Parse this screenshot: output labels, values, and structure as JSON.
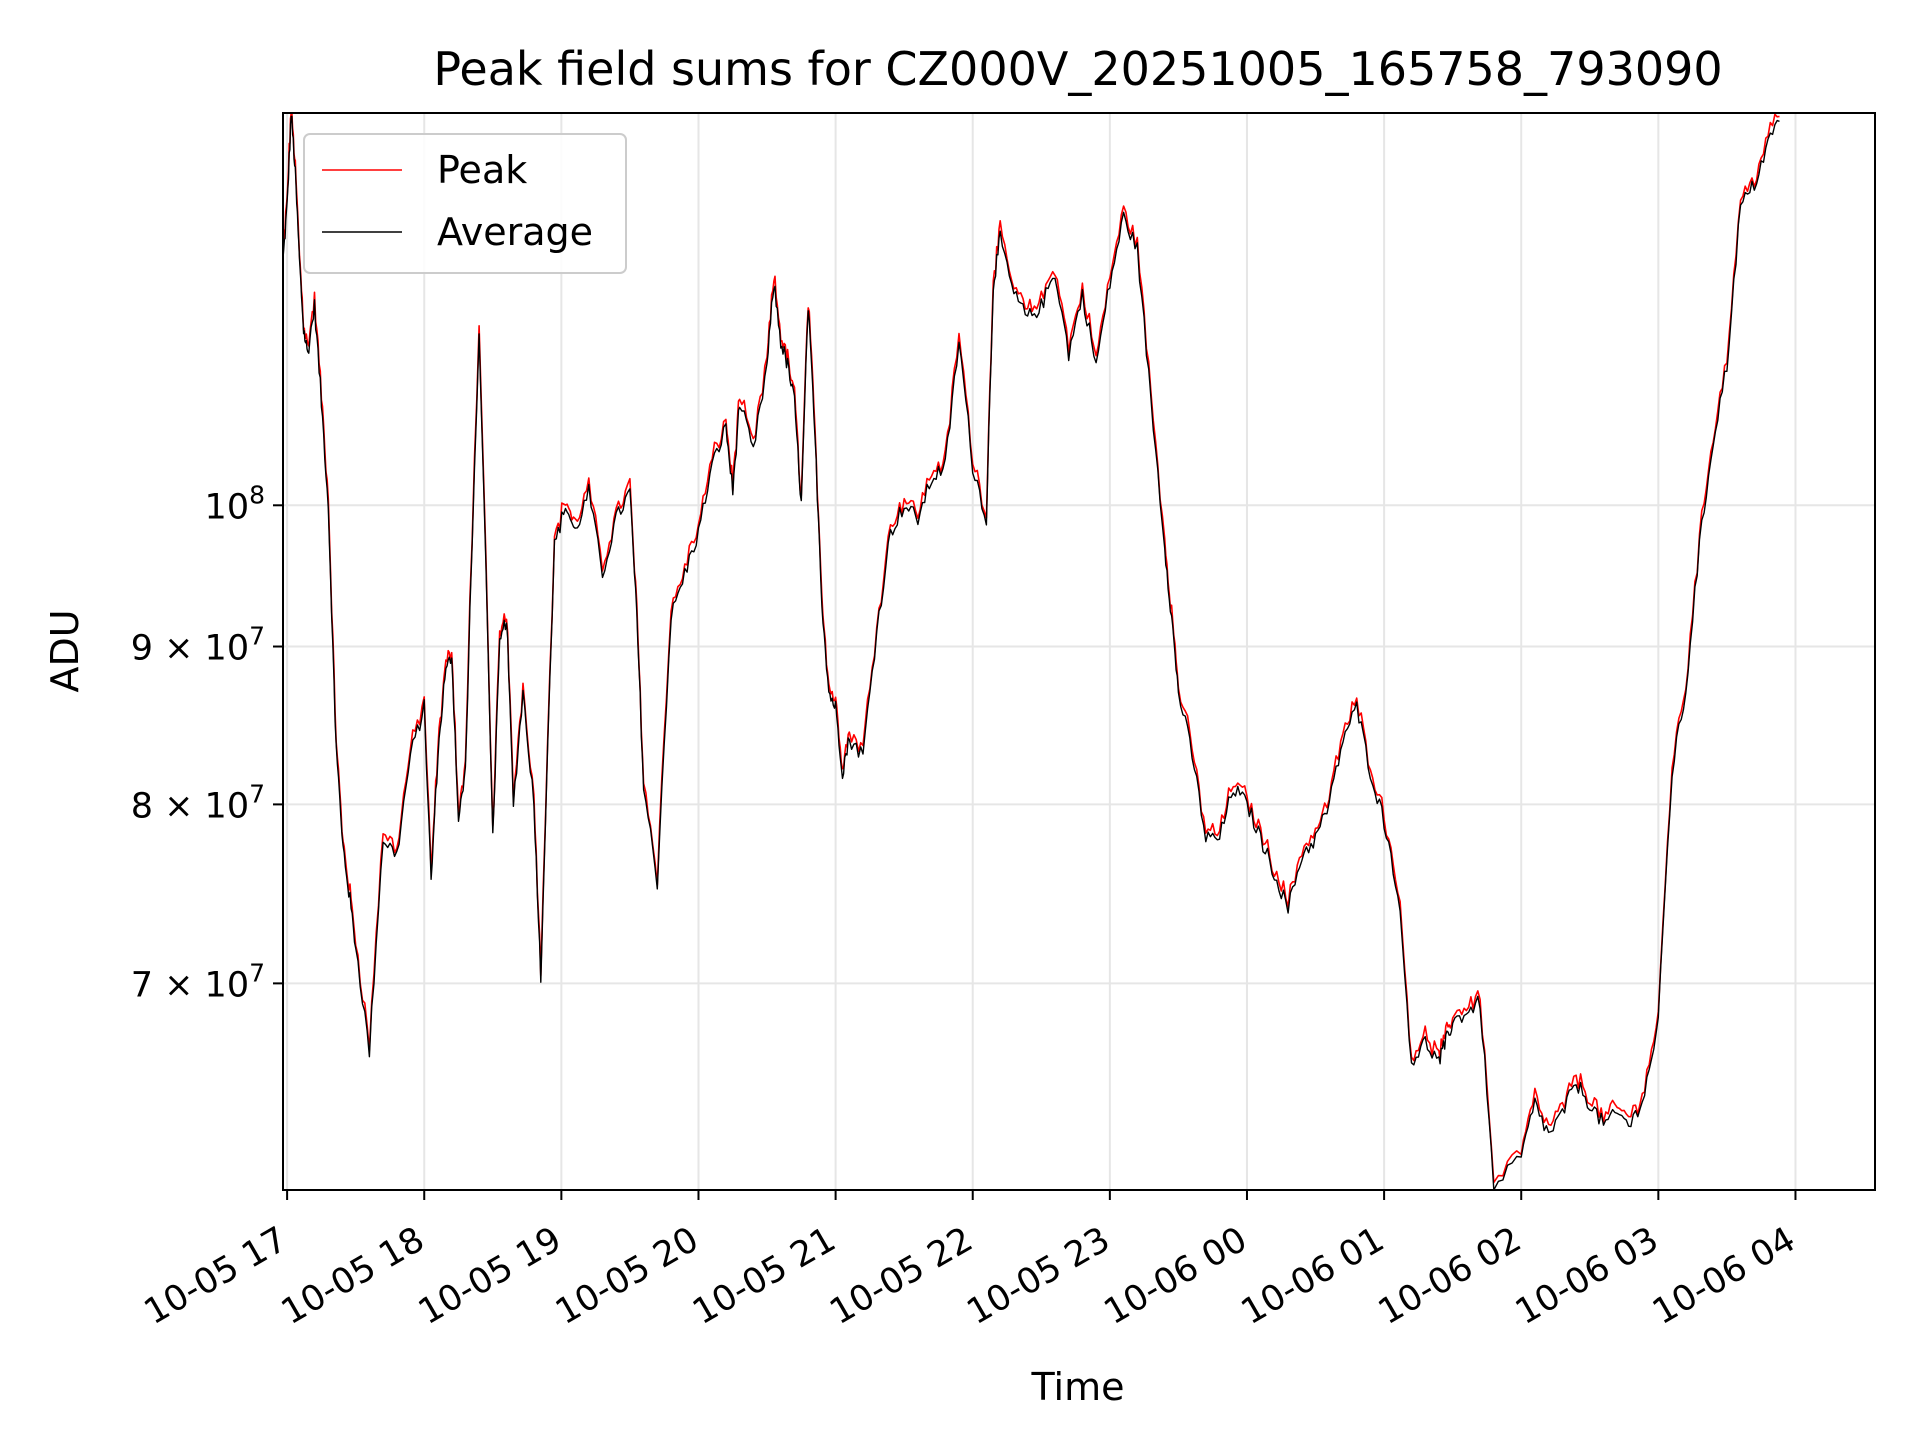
{
  "chart_data": {
    "type": "line",
    "title": "Peak field sums for CZ000V_20251005_165758_793090",
    "xlabel": "Time",
    "ylabel": "ADU",
    "yscale": "log",
    "ylim": [
      60000000,
      134000000
    ],
    "xlim_hours": [
      -0.03,
      11.58
    ],
    "grid": true,
    "legend_placement": "top-left",
    "x_ticks": [
      {
        "label": "10-05 17",
        "hour": 0
      },
      {
        "label": "10-05 18",
        "hour": 1
      },
      {
        "label": "10-05 19",
        "hour": 2
      },
      {
        "label": "10-05 20",
        "hour": 3
      },
      {
        "label": "10-05 21",
        "hour": 4
      },
      {
        "label": "10-05 22",
        "hour": 5
      },
      {
        "label": "10-05 23",
        "hour": 6
      },
      {
        "label": "10-06 00",
        "hour": 7
      },
      {
        "label": "10-06 01",
        "hour": 8
      },
      {
        "label": "10-06 02",
        "hour": 9
      },
      {
        "label": "10-06 03",
        "hour": 10
      },
      {
        "label": "10-06 04",
        "hour": 11
      }
    ],
    "y_ticks": [
      {
        "value": 70000000,
        "mantissa": "7",
        "exponent": "7"
      },
      {
        "value": 80000000,
        "mantissa": "8",
        "exponent": "7"
      },
      {
        "value": 90000000,
        "mantissa": "9",
        "exponent": "7"
      },
      {
        "value": 100000000,
        "mantissa": "",
        "exponent": "8"
      }
    ],
    "series": [
      {
        "name": "Peak",
        "color": "#ff0000"
      },
      {
        "name": "Average",
        "color": "#000000"
      }
    ],
    "x_hours": [
      -0.03,
      0.0,
      0.03,
      0.06,
      0.09,
      0.12,
      0.15,
      0.2,
      0.25,
      0.3,
      0.35,
      0.4,
      0.45,
      0.5,
      0.6,
      0.7,
      0.8,
      0.9,
      1.0,
      1.05,
      1.1,
      1.15,
      1.2,
      1.25,
      1.3,
      1.4,
      1.5,
      1.55,
      1.6,
      1.65,
      1.72,
      1.8,
      1.85,
      1.95,
      2.03,
      2.1,
      2.2,
      2.3,
      2.4,
      2.5,
      2.55,
      2.6,
      2.7,
      2.8,
      2.9,
      3.0,
      3.1,
      3.2,
      3.25,
      3.3,
      3.4,
      3.5,
      3.55,
      3.6,
      3.65,
      3.7,
      3.75,
      3.8,
      3.85,
      3.9,
      3.95,
      4.0,
      4.05,
      4.1,
      4.2,
      4.3,
      4.4,
      4.5,
      4.6,
      4.7,
      4.8,
      4.9,
      5.0,
      5.1,
      5.15,
      5.2,
      5.3,
      5.4,
      5.5,
      5.6,
      5.7,
      5.8,
      5.9,
      6.0,
      6.1,
      6.2,
      6.3,
      6.4,
      6.45,
      6.5,
      6.6,
      6.7,
      6.8,
      6.9,
      7.0,
      7.1,
      7.2,
      7.3,
      7.4,
      7.5,
      7.6,
      7.7,
      7.8,
      7.9,
      8.0,
      8.1,
      8.2,
      8.3,
      8.4,
      8.45,
      8.5,
      8.6,
      8.7,
      8.8,
      9.0,
      9.1,
      9.2,
      9.3,
      9.4,
      9.5,
      9.6,
      9.7,
      9.8,
      9.9,
      10.0,
      10.1,
      10.2,
      10.3,
      10.4,
      10.5,
      10.6,
      10.7,
      10.8,
      10.9,
      11.0,
      11.05,
      11.1,
      11.15,
      11.2,
      11.3,
      11.4,
      11.5,
      11.58
    ],
    "average": [
      120000000,
      125000000,
      134000000,
      128000000,
      120000000,
      114000000,
      112000000,
      116000000,
      108000000,
      100000000,
      85000000,
      78000000,
      75000000,
      72000000,
      66500000,
      78000000,
      77000000,
      83000000,
      86000000,
      75500000,
      83000000,
      88000000,
      89500000,
      79000000,
      82000000,
      113000000,
      78000000,
      90000000,
      92000000,
      80000000,
      87000000,
      80000000,
      70300000,
      97000000,
      100000000,
      98000000,
      101000000,
      95000000,
      99000000,
      101000000,
      92000000,
      81000000,
      75500000,
      92000000,
      95000000,
      98000000,
      103000000,
      106000000,
      101000000,
      108000000,
      104000000,
      111000000,
      118000000,
      113000000,
      111000000,
      108000000,
      100000000,
      116000000,
      105000000,
      93000000,
      87000000,
      86000000,
      82000000,
      84000000,
      83000000,
      91000000,
      98000000,
      100000000,
      99000000,
      102000000,
      103000000,
      113000000,
      103000000,
      99000000,
      118000000,
      122000000,
      117000000,
      115000000,
      116000000,
      119000000,
      112000000,
      117000000,
      111000000,
      118000000,
      124000000,
      121000000,
      108000000,
      97000000,
      92000000,
      87000000,
      83000000,
      78000000,
      78000000,
      81000000,
      80000000,
      78000000,
      76000000,
      74000000,
      77000000,
      78000000,
      80000000,
      84000000,
      86000000,
      82000000,
      79000000,
      75000000,
      66000000,
      67000000,
      66000000,
      67000000,
      68000000,
      68500000,
      69000000,
      60000000,
      61500000,
      64000000,
      62500000,
      63500000,
      65000000,
      64000000,
      63000000,
      63500000,
      63000000,
      64500000,
      68000000,
      82000000,
      87000000,
      97000000,
      105000000,
      111000000,
      125000000,
      127000000,
      131000000,
      134000000
    ]
  }
}
